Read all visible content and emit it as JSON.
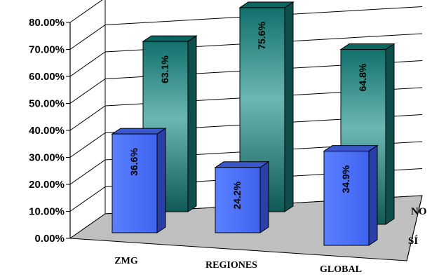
{
  "chart_data": {
    "type": "bar",
    "categories": [
      "ZMG",
      "REGIONES",
      "GLOBAL"
    ],
    "series": [
      {
        "name": "SÍ",
        "values": [
          36.6,
          24.2,
          34.9
        ],
        "labels": [
          "36.6%",
          "24.2%",
          "34.9%"
        ],
        "color": "#3e63ee"
      },
      {
        "name": "NO",
        "values": [
          63.1,
          75.6,
          64.8
        ],
        "labels": [
          "63.1%",
          "75.6%",
          "64.8%"
        ],
        "color": "#1f8c88"
      }
    ],
    "yticks": [
      "0.00%",
      "10.00%",
      "20.00%",
      "30.00%",
      "40.00%",
      "50.00%",
      "60.00%",
      "70.00%",
      "80.00%"
    ],
    "ylim": [
      0,
      80
    ],
    "grid": true,
    "three_d": true,
    "floor_color": "#c0c0c0"
  }
}
